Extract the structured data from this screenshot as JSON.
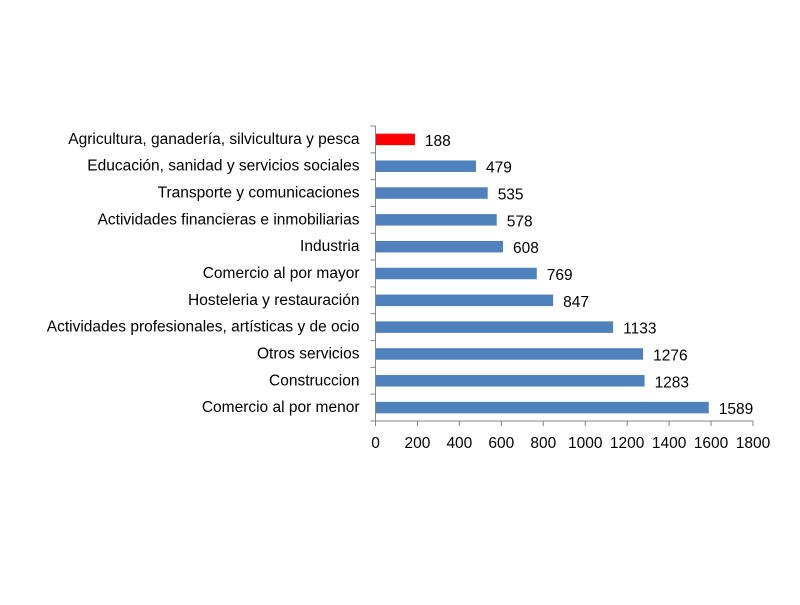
{
  "chart_data": {
    "type": "bar",
    "orientation": "horizontal",
    "title": "",
    "xlabel": "",
    "ylabel": "",
    "categories": [
      "Agricultura, ganadería, silvicultura y pesca",
      "Educación, sanidad y servicios sociales",
      "Transporte y comunicaciones",
      "Actividades financieras e inmobiliarias",
      "Industria",
      "Comercio al por mayor",
      "Hosteleria y restauración",
      "Actividades profesionales, artísticas y de ocio",
      "Otros servicios",
      "Construccion",
      "Comercio al por menor"
    ],
    "values": [
      188,
      479,
      535,
      578,
      608,
      769,
      847,
      1133,
      1276,
      1283,
      1589
    ],
    "bar_colors": [
      "#ff0000",
      "#4f81bd",
      "#4f81bd",
      "#4f81bd",
      "#4f81bd",
      "#4f81bd",
      "#4f81bd",
      "#4f81bd",
      "#4f81bd",
      "#4f81bd",
      "#4f81bd"
    ],
    "xlim": [
      0,
      1800
    ],
    "xticks": [
      0,
      200,
      400,
      600,
      800,
      1000,
      1200,
      1400,
      1600,
      1800
    ],
    "data_labels": true,
    "grid": false,
    "legend": "none"
  }
}
